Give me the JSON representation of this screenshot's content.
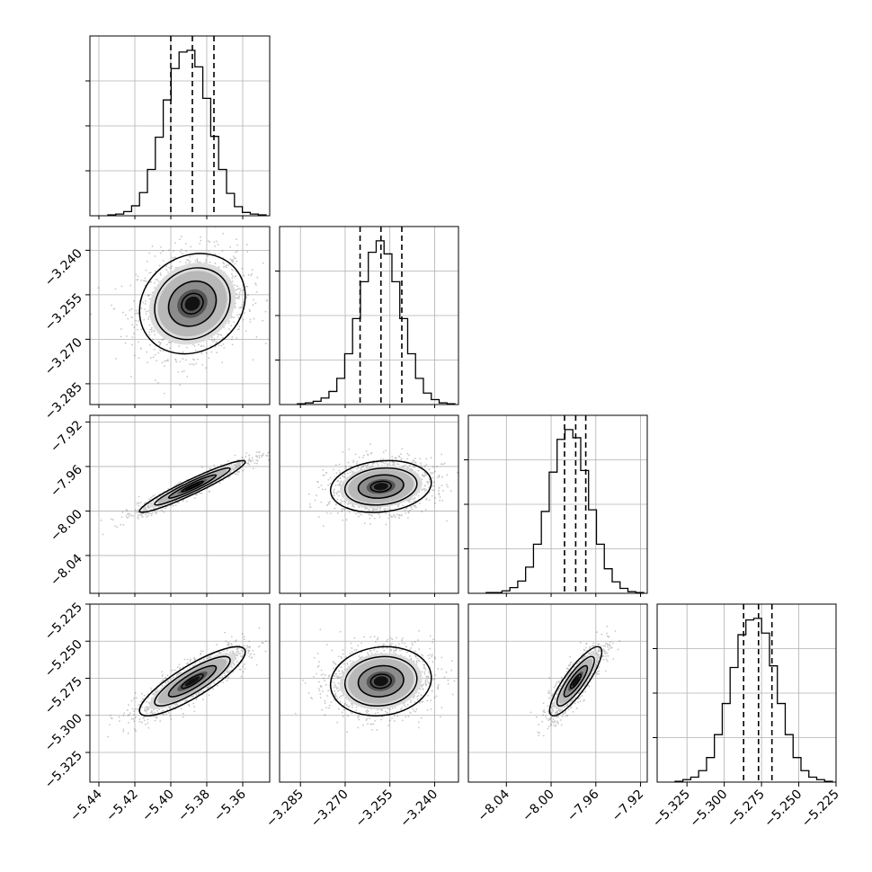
{
  "chart_data": {
    "type": "corner",
    "grid": true,
    "parameters": [
      {
        "index": 0,
        "range": [
          -5.445,
          -5.345
        ],
        "ticks": [
          -5.44,
          -5.42,
          -5.4,
          -5.38,
          -5.36
        ],
        "tick_labels": [
          "−5.44",
          "−5.42",
          "−5.40",
          "−5.38",
          "−5.36"
        ],
        "mean": -5.388,
        "sd": 0.012,
        "quantiles": [
          -5.4,
          -5.388,
          -5.376
        ]
      },
      {
        "index": 1,
        "range": [
          -3.292,
          -3.232
        ],
        "ticks": [
          -3.285,
          -3.27,
          -3.255,
          -3.24
        ],
        "tick_labels": [
          "−3.285",
          "−3.270",
          "−3.255",
          "−3.240"
        ],
        "mean": -3.258,
        "sd": 0.0069,
        "quantiles": [
          -3.265,
          -3.258,
          -3.251
        ]
      },
      {
        "index": 2,
        "range": [
          -8.074,
          -7.914
        ],
        "ticks": [
          -8.04,
          -8.0,
          -7.96,
          -7.92
        ],
        "tick_labels": [
          "−8.04",
          "−8.00",
          "−7.96",
          "−7.92"
        ],
        "mean": -7.978,
        "sd": 0.0095,
        "quantiles": [
          -7.988,
          -7.978,
          -7.969
        ]
      },
      {
        "index": 3,
        "range": [
          -5.345,
          -5.225
        ],
        "ticks": [
          -5.325,
          -5.3,
          -5.275,
          -5.25,
          -5.225
        ],
        "tick_labels": [
          "−5.325",
          "−5.300",
          "−5.275",
          "−5.250",
          "−5.225"
        ],
        "mean": -5.277,
        "sd": 0.0095,
        "quantiles": [
          -5.287,
          -5.277,
          -5.268
        ]
      }
    ],
    "correlations": {
      "1-0": 0.15,
      "2-0": 0.95,
      "2-1": 0.15,
      "3-0": 0.85,
      "3-1": 0.1,
      "3-2": 0.85
    },
    "histograms": [
      {
        "param": 0,
        "counts": [
          1,
          2,
          5,
          12,
          28,
          56,
          95,
          140,
          178,
          198,
          200,
          180,
          142,
          96,
          56,
          27,
          11,
          4,
          2,
          1
        ]
      },
      {
        "param": 1,
        "counts": [
          1,
          2,
          4,
          8,
          16,
          32,
          62,
          105,
          150,
          186,
          200,
          184,
          150,
          105,
          62,
          32,
          14,
          6,
          2,
          1
        ]
      },
      {
        "param": 2,
        "counts": [
          1,
          1,
          3,
          7,
          15,
          32,
          60,
          100,
          148,
          188,
          200,
          190,
          150,
          102,
          60,
          30,
          14,
          6,
          2,
          1
        ]
      },
      {
        "param": 3,
        "counts": [
          1,
          3,
          6,
          14,
          30,
          58,
          96,
          140,
          180,
          198,
          200,
          182,
          142,
          96,
          58,
          30,
          14,
          6,
          3,
          1
        ]
      }
    ]
  }
}
